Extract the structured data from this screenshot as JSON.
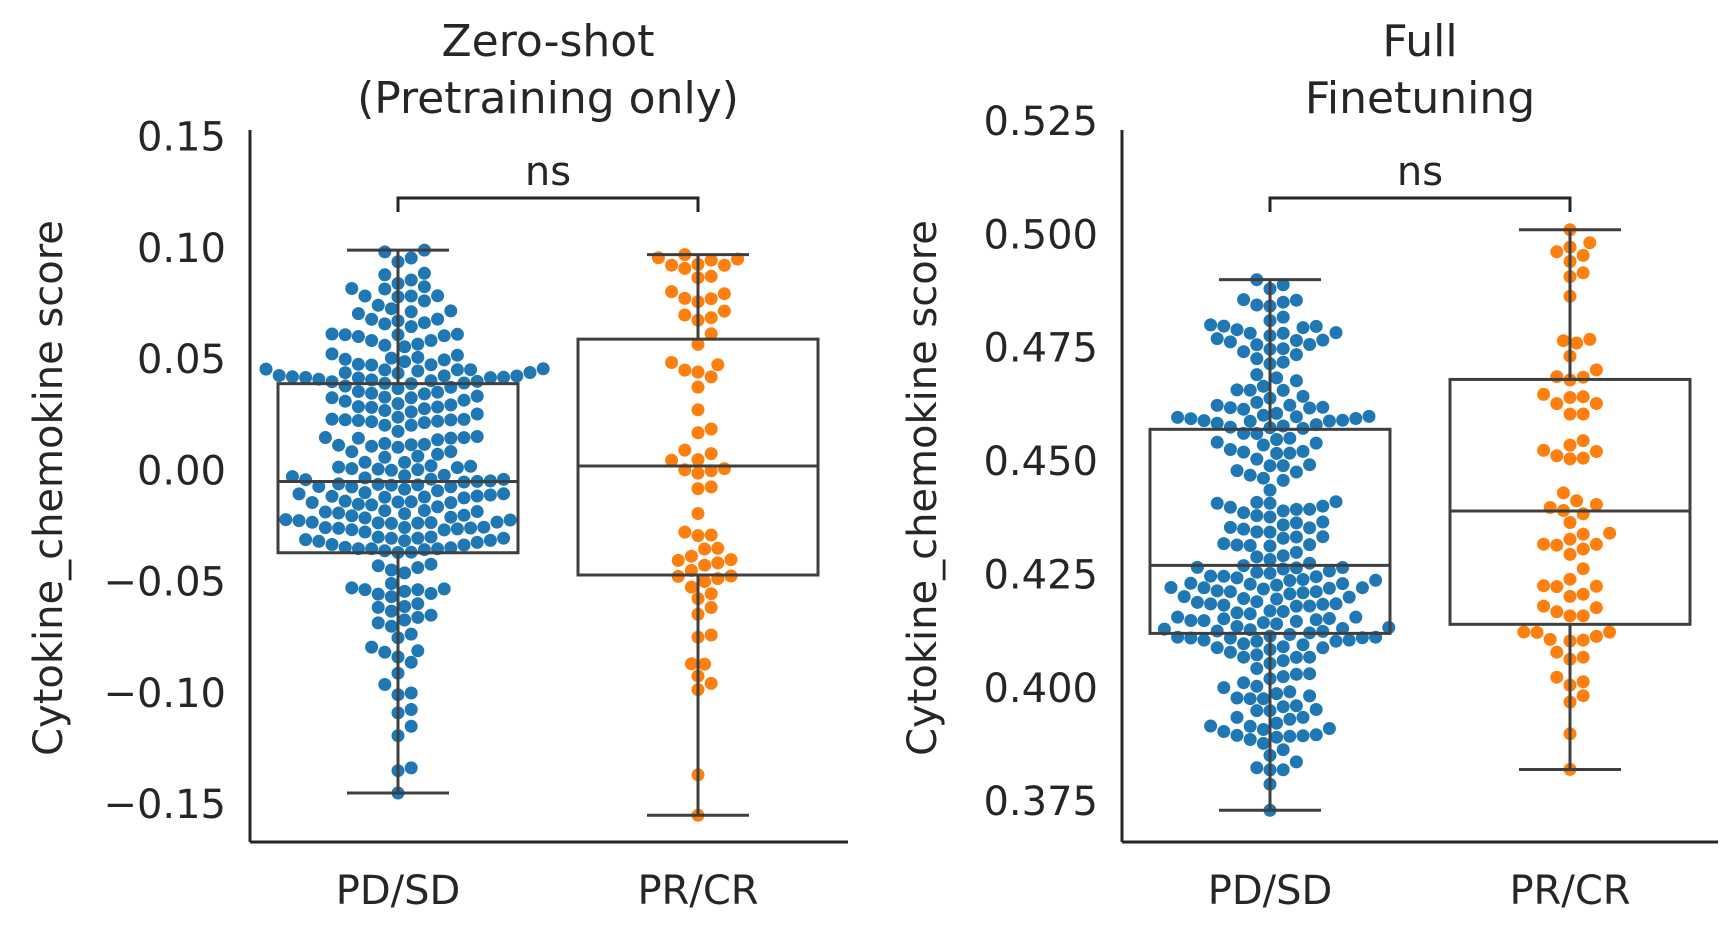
{
  "chart_data": [
    {
      "type": "box-swarm",
      "title_lines": [
        "Zero-shot",
        "(Pretraining only)"
      ],
      "ylabel": "Cytokine_chemokine score",
      "xlabel": "",
      "categories": [
        "PD/SD",
        "PR/CR"
      ],
      "yticks": [
        "−0.15",
        "−0.10",
        "−0.05",
        "0.00",
        "0.05",
        "0.10",
        "0.15"
      ],
      "ytick_values": [
        -0.15,
        -0.1,
        -0.05,
        0.0,
        0.05,
        0.1,
        0.15
      ],
      "ylim": [
        -0.167,
        0.153
      ],
      "significance": "ns",
      "colors": [
        "#1f77b4",
        "#ff7f0e"
      ],
      "boxes": [
        {
          "category": "PD/SD",
          "whisker_low": -0.145,
          "q1": -0.037,
          "median": -0.005,
          "q3": 0.039,
          "whisker_high": 0.099
        },
        {
          "category": "PR/CR",
          "whisker_low": -0.155,
          "q1": -0.047,
          "median": 0.002,
          "q3": 0.059,
          "whisker_high": 0.097
        }
      ],
      "series": [
        {
          "category": "PD/SD",
          "n": 260,
          "min": -0.145,
          "max": 0.099
        },
        {
          "category": "PR/CR",
          "n": 70,
          "min": -0.155,
          "max": 0.097
        }
      ]
    },
    {
      "type": "box-swarm",
      "title_lines": [
        "Full",
        "Finetuning"
      ],
      "ylabel": "Cytokine_chemokine score",
      "xlabel": "",
      "categories": [
        "PD/SD",
        "PR/CR"
      ],
      "yticks": [
        "0.375",
        "0.400",
        "0.425",
        "0.450",
        "0.475",
        "0.500",
        "0.525"
      ],
      "ytick_values": [
        0.375,
        0.4,
        0.425,
        0.45,
        0.475,
        0.5,
        0.525
      ],
      "ylim": [
        0.366,
        0.523
      ],
      "significance": "ns",
      "colors": [
        "#1f77b4",
        "#ff7f0e"
      ],
      "boxes": [
        {
          "category": "PD/SD",
          "whisker_low": 0.373,
          "q1": 0.412,
          "median": 0.427,
          "q3": 0.457,
          "whisker_high": 0.49
        },
        {
          "category": "PR/CR",
          "whisker_low": 0.382,
          "q1": 0.414,
          "median": 0.439,
          "q3": 0.468,
          "whisker_high": 0.501
        }
      ],
      "series": [
        {
          "category": "PD/SD",
          "n": 250,
          "min": 0.373,
          "max": 0.49
        },
        {
          "category": "PR/CR",
          "n": 75,
          "min": 0.382,
          "max": 0.501
        }
      ]
    }
  ]
}
